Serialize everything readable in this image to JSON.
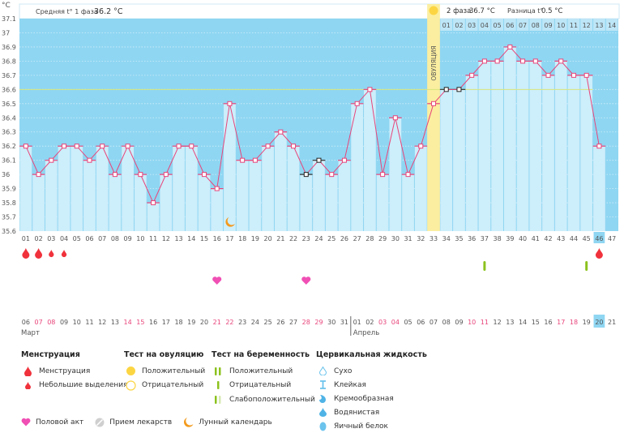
{
  "header": {
    "unit_label": "°C",
    "phase1_label": "Средняя t° 1 фаза",
    "phase1_value": "36.2 °C",
    "phase2_label": "2 фаза",
    "phase2_value": "36.7 °C",
    "diff_label": "Разница t°",
    "diff_value": "0.5 °C",
    "ovulation_label": "ОВУЛЯЦИЯ"
  },
  "colors": {
    "sky": "#8fd6f2",
    "bar": "#cdeefb",
    "line": "#e8457a",
    "coverline": "#d9e67a",
    "ovulation": "#fbeea0",
    "weekend": "#e8457a",
    "today": "#8fd6f2",
    "blood": "#f0323c",
    "heart": "#f04fb4",
    "test": "#8cc21e"
  },
  "chart_data": {
    "type": "bar",
    "title": "",
    "xlabel": "",
    "ylabel": "°C",
    "ylim": [
      35.6,
      37.1
    ],
    "yticks": [
      "35.6",
      "35.7",
      "35.8",
      "35.9",
      "36",
      "36.1",
      "36.2",
      "36.3",
      "36.4",
      "36.5",
      "36.6",
      "36.7",
      "36.8",
      "36.9",
      "37",
      "37.1"
    ],
    "coverline": 36.6,
    "cycle_days": [
      "01",
      "02",
      "03",
      "04",
      "05",
      "06",
      "07",
      "08",
      "09",
      "10",
      "11",
      "12",
      "13",
      "14",
      "15",
      "16",
      "17",
      "18",
      "19",
      "20",
      "21",
      "22",
      "23",
      "24",
      "25",
      "26",
      "27",
      "28",
      "29",
      "30",
      "31",
      "32",
      "33",
      "34",
      "35",
      "36",
      "37",
      "38",
      "39",
      "40",
      "41",
      "42",
      "43",
      "44",
      "45",
      "46",
      "47"
    ],
    "temperatures": [
      36.2,
      36.0,
      36.1,
      36.2,
      36.2,
      36.1,
      36.2,
      36.0,
      36.2,
      36.0,
      35.8,
      36.0,
      36.2,
      36.2,
      36.0,
      35.9,
      36.5,
      36.1,
      36.1,
      36.2,
      36.3,
      36.2,
      36.0,
      36.1,
      36.0,
      36.1,
      36.5,
      36.6,
      36.0,
      36.4,
      36.0,
      36.2,
      36.5,
      36.6,
      36.6,
      36.7,
      36.8,
      36.8,
      36.9,
      36.8,
      36.8,
      36.7,
      36.8,
      36.7,
      36.7,
      36.2,
      null
    ],
    "excluded_points": [
      23,
      24,
      34,
      35
    ],
    "ovulation_day": 33,
    "post_ovulation_days": [
      "01",
      "02",
      "03",
      "04",
      "05",
      "06",
      "07",
      "08",
      "09",
      "10",
      "11",
      "12",
      "13",
      "14"
    ],
    "today_cycle_day": 46,
    "moon_day": 17
  },
  "calendar": {
    "dates": [
      "06",
      "07",
      "08",
      "09",
      "10",
      "11",
      "12",
      "13",
      "14",
      "15",
      "16",
      "17",
      "18",
      "19",
      "20",
      "21",
      "22",
      "23",
      "24",
      "25",
      "26",
      "27",
      "28",
      "29",
      "30",
      "31",
      "01",
      "02",
      "03",
      "04",
      "05",
      "06",
      "07",
      "08",
      "09",
      "10",
      "11",
      "12",
      "13",
      "14",
      "15",
      "16",
      "17",
      "18",
      "19",
      "20",
      "21"
    ],
    "weekend_indices": [
      1,
      2,
      8,
      9,
      15,
      16,
      22,
      23,
      28,
      29,
      35,
      36,
      42,
      43
    ],
    "month1": "Март",
    "month2": "Апрель",
    "month2_start_index": 26
  },
  "markers": {
    "menstruation_big": [
      1,
      2,
      46
    ],
    "menstruation_small": [
      3,
      4
    ],
    "pregnancy_negative": [
      37,
      45
    ],
    "intercourse": [
      16,
      23
    ]
  },
  "legend": {
    "menstruation": {
      "title": "Менструация",
      "items": [
        "Менструация",
        "Небольшие выделения"
      ]
    },
    "ovulation_test": {
      "title": "Тест на овуляцию",
      "items": [
        "Положительный",
        "Отрицательный"
      ]
    },
    "pregnancy_test": {
      "title": "Тест на беременность",
      "items": [
        "Положительный",
        "Отрицательный",
        "Слабоположительный"
      ]
    },
    "cervical": {
      "title": "Цервикальная жидкость",
      "items": [
        "Сухо",
        "Клейкая",
        "Кремообразная",
        "Водянистая",
        "Яичный белок"
      ]
    },
    "other": [
      "Половой акт",
      "Прием лекарств",
      "Лунный календарь"
    ]
  }
}
